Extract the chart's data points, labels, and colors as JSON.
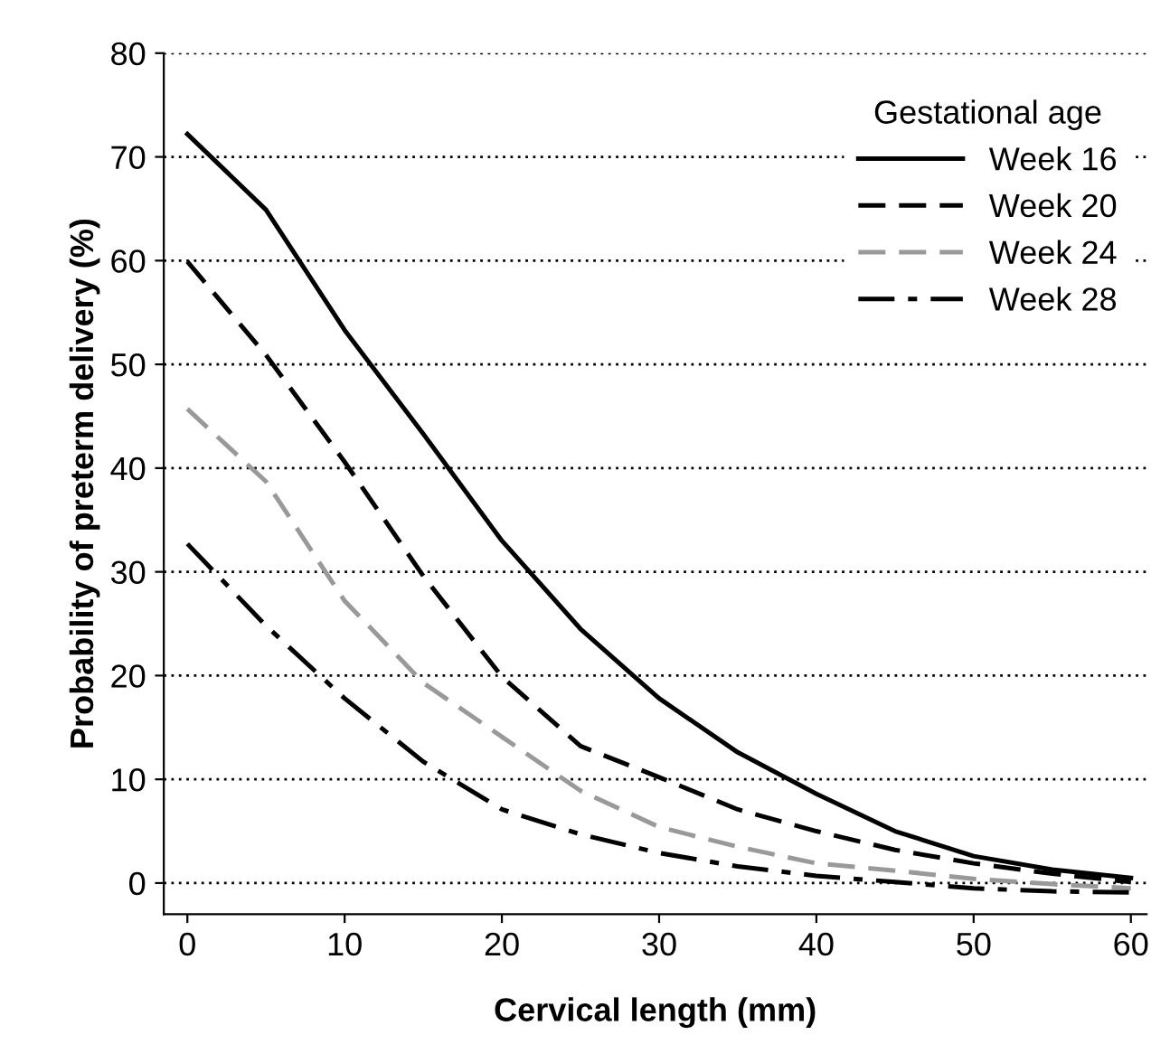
{
  "chart_data": {
    "type": "line",
    "xlabel": "Cervical length (mm)",
    "ylabel": "Probability of preterm delivery (%)",
    "legend_title": "Gestational age",
    "legend": "top right",
    "grid": "y",
    "marker": "none",
    "xlim": [
      -1.5,
      61
    ],
    "ylim": [
      -3,
      80
    ],
    "xticks": [
      0,
      10,
      20,
      30,
      40,
      50,
      60
    ],
    "yticks": [
      0,
      10,
      20,
      30,
      40,
      50,
      60,
      70,
      80
    ],
    "x": [
      0,
      5,
      10,
      15,
      20,
      25,
      30,
      35,
      40,
      45,
      50,
      55,
      60
    ],
    "series": [
      {
        "name": "Week 16",
        "color": "#000000",
        "line_style": "solid",
        "values": [
          72.2,
          64.9,
          53.3,
          43.3,
          33,
          24.5,
          17.8,
          12.6,
          8.6,
          5,
          2.6,
          1.3,
          0.5
        ]
      },
      {
        "name": "Week 20",
        "color": "#000000",
        "line_style": "dashed",
        "values": [
          59.9,
          50.9,
          40.6,
          29.6,
          19.9,
          13.2,
          10.2,
          7.1,
          5,
          3.2,
          1.9,
          0.9,
          0.1
        ]
      },
      {
        "name": "Week 24",
        "color": "#999999",
        "line_style": "dashed",
        "values": [
          45.7,
          38.7,
          27.2,
          19.3,
          14.1,
          8.9,
          5.4,
          3.5,
          1.9,
          1.2,
          0.4,
          -0.1,
          -0.5
        ]
      },
      {
        "name": "Week 28",
        "color": "#000000",
        "line_style": "dashdot",
        "values": [
          32.7,
          24.8,
          17.8,
          11.7,
          7.1,
          4.7,
          2.9,
          1.6,
          0.7,
          0.1,
          -0.5,
          -0.8,
          -0.9
        ]
      }
    ]
  }
}
